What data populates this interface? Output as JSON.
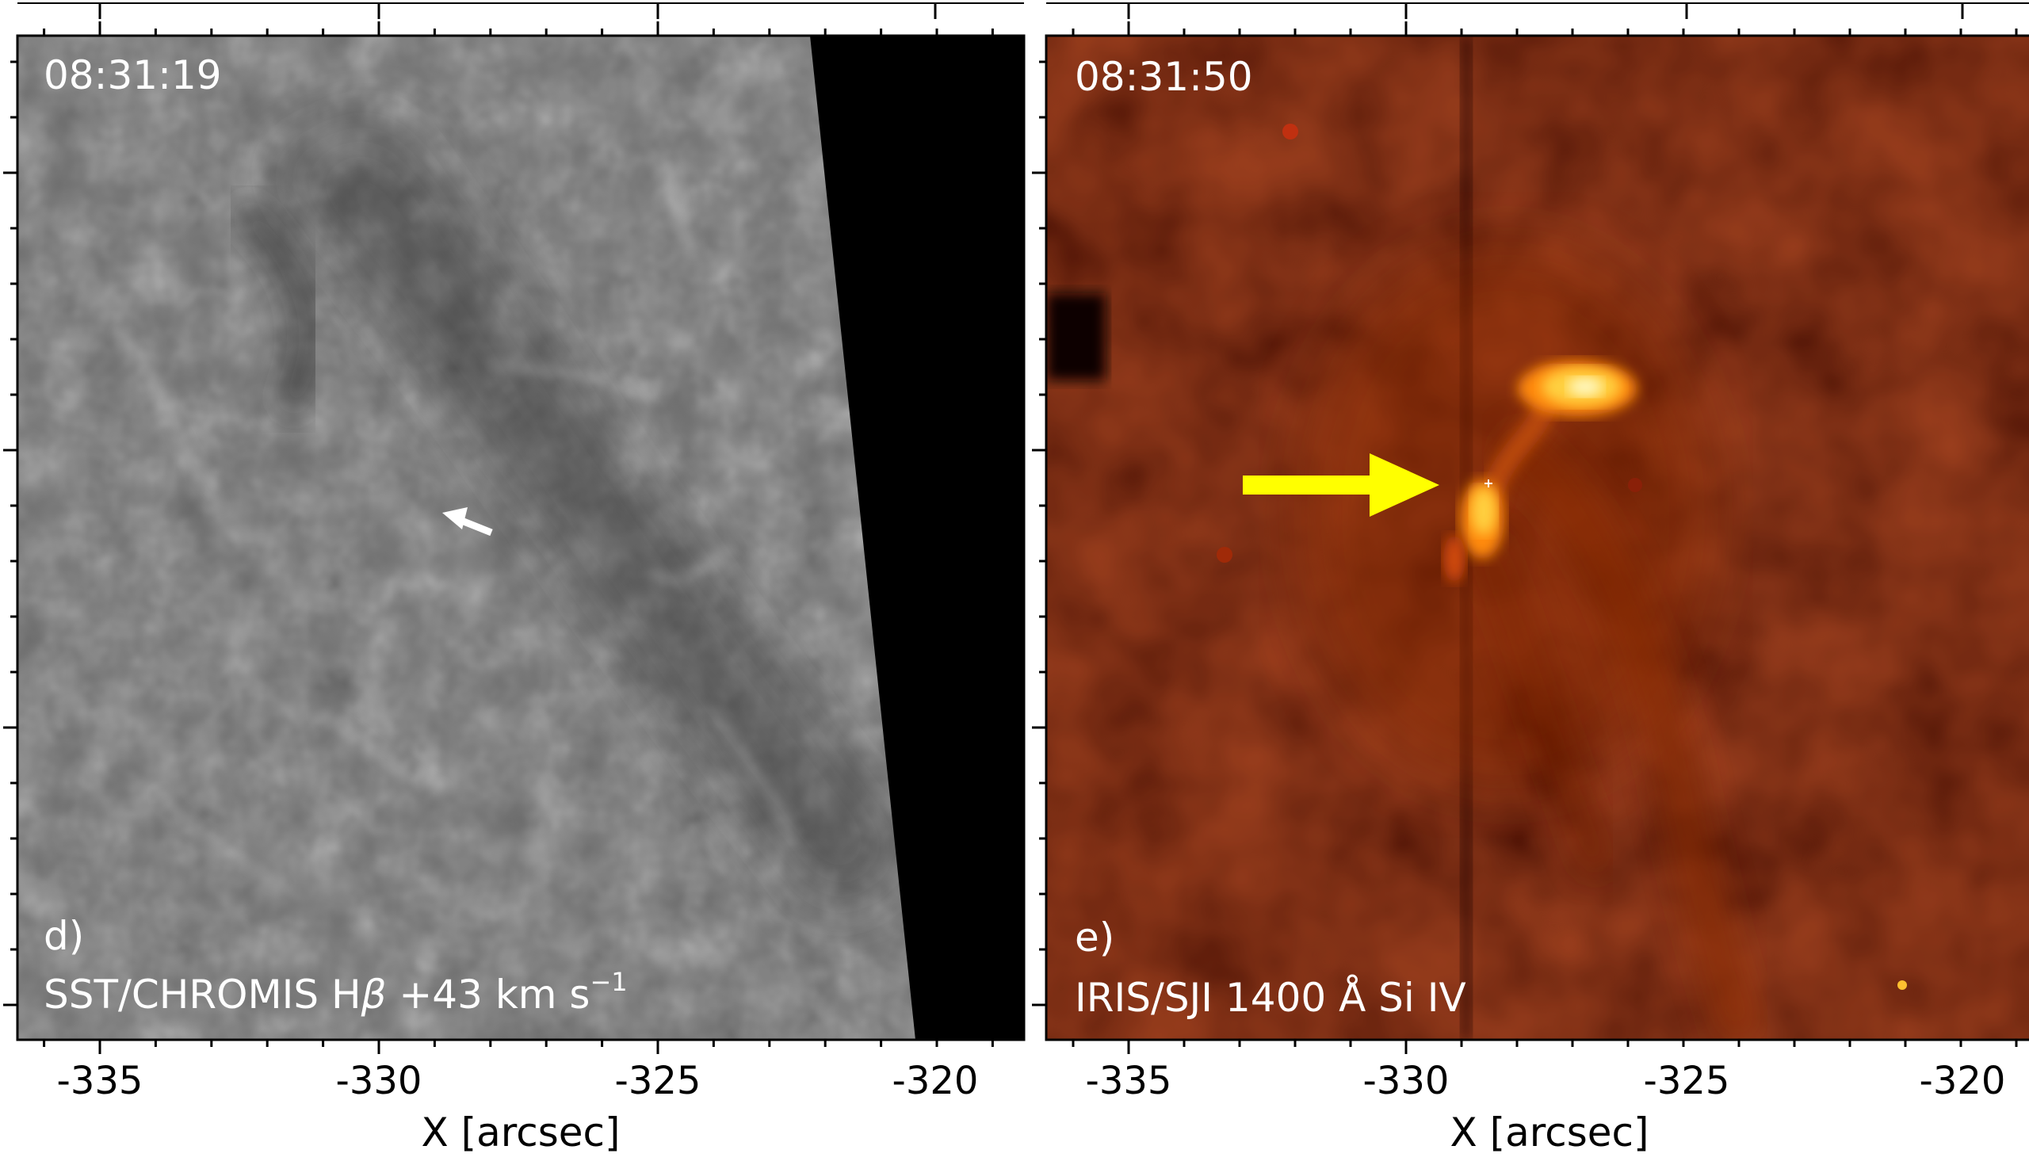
{
  "panels": [
    {
      "id": "d",
      "timestamp": "08:31:19",
      "panel_letter": "d)",
      "instrument_label": {
        "main": "SST/CHROMIS H",
        "symbol": "β",
        "value": " +43 km s",
        "exponent": "−1"
      },
      "x_ticks": [
        "-335",
        "-330",
        "-325",
        "-320"
      ],
      "xlabel": "X [arcsec]"
    },
    {
      "id": "e",
      "timestamp": "08:31:50",
      "panel_letter": "e)",
      "instrument_label": {
        "main": "IRIS/SJI 1400 Å Si IV"
      },
      "x_ticks": [
        "-335",
        "-330",
        "-325",
        "-320"
      ],
      "xlabel": "X [arcsec]"
    }
  ],
  "colors": {
    "arrow_yellow": "#ffff00",
    "arrow_white": "#ffffff",
    "iris_bg": "#3a0a02"
  }
}
